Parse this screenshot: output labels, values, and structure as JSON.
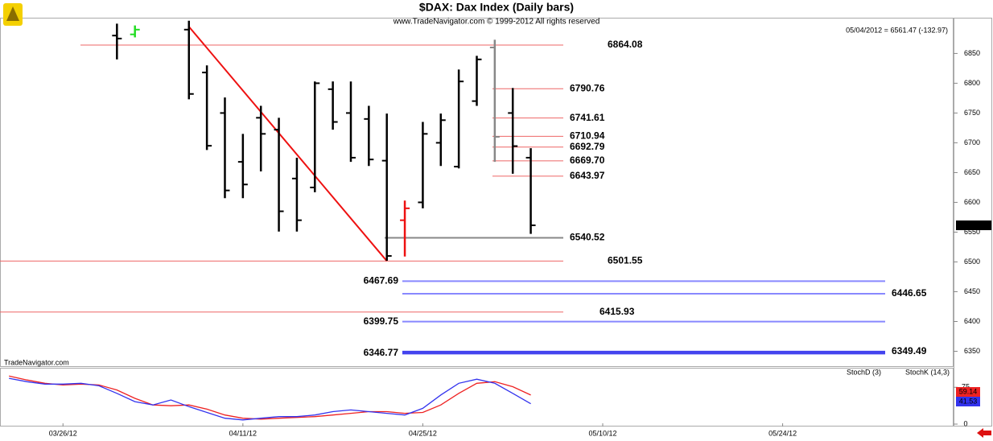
{
  "chart_data": [
    {
      "type": "ohlc",
      "title": "$DAX:  Dax Index  (Daily bars)",
      "subtitle": "www.TradeNavigator.com © 1999-2012 All rights reserved",
      "quote": "05/04/2012 = 6561.47 (-132.97)",
      "watermark": "TradeNavigator.com",
      "categories": [
        null,
        null,
        null,
        "03/26/12",
        null,
        null,
        null,
        null,
        null,
        null,
        null,
        null,
        null,
        "04/11/12",
        null,
        null,
        null,
        null,
        null,
        null,
        null,
        null,
        null,
        "04/25/12",
        null,
        null,
        null,
        null,
        null,
        null,
        null,
        null,
        null,
        "05/10/12",
        null,
        null,
        null,
        null,
        null,
        null,
        null,
        null,
        null,
        "05/24/12",
        null,
        null,
        null,
        null,
        null,
        null,
        null,
        null,
        null
      ],
      "open": [
        null,
        null,
        null,
        null,
        null,
        null,
        6880,
        6882,
        null,
        null,
        6890,
        6818,
        6750,
        6668,
        6742,
        6722,
        6640,
        6625,
        6790,
        6750,
        6740,
        6670,
        6570,
        6600,
        6700,
        6660,
        6770,
        6860,
        6750,
        6675,
        null,
        null,
        null,
        null,
        null,
        null,
        null,
        null,
        null,
        null,
        null,
        null,
        null,
        null,
        null,
        null,
        null,
        null,
        null,
        null,
        null,
        null,
        null
      ],
      "high": [
        null,
        null,
        null,
        null,
        null,
        null,
        6900,
        6897,
        null,
        null,
        6905,
        6830,
        6776,
        6715,
        6762,
        6742,
        6675,
        6803,
        6803,
        6803,
        6762,
        6749,
        6603,
        6735,
        6749,
        6823,
        6846,
        6873,
        6792,
        6691,
        null,
        null,
        null,
        null,
        null,
        null,
        null,
        null,
        null,
        null,
        null,
        null,
        null,
        null,
        null,
        null,
        null,
        null,
        null,
        null,
        null,
        null,
        null
      ],
      "low": [
        null,
        null,
        null,
        null,
        null,
        null,
        6840,
        6877,
        null,
        null,
        6773,
        6688,
        6607,
        6607,
        6652,
        6551,
        6551,
        6617,
        6722,
        6668,
        6661,
        6502,
        6509,
        6590,
        6661,
        6657,
        6762,
        6668,
        6648,
        6547,
        null,
        null,
        null,
        null,
        null,
        null,
        null,
        null,
        null,
        null,
        null,
        null,
        null,
        null,
        null,
        null,
        null,
        null,
        null,
        null,
        null,
        null,
        null
      ],
      "close": [
        null,
        null,
        null,
        null,
        null,
        null,
        6875,
        6890,
        null,
        null,
        6782,
        6695,
        6620,
        6630,
        6715,
        6585,
        6570,
        6800,
        6735,
        6675,
        6672,
        6510,
        6590,
        6715,
        6738,
        6803,
        6840,
        6710,
        6694.44,
        6561.47,
        null,
        null,
        null,
        null,
        null,
        null,
        null,
        null,
        null,
        null,
        null,
        null,
        null,
        null,
        null,
        null,
        null,
        null,
        null,
        null,
        null,
        null,
        null
      ],
      "bar_colors": [
        null,
        null,
        null,
        null,
        null,
        null,
        "#000000",
        "#22dd22",
        null,
        null,
        "#000000",
        "#000000",
        "#000000",
        "#000000",
        "#000000",
        "#000000",
        "#000000",
        "#000000",
        "#000000",
        "#000000",
        "#000000",
        "#000000",
        "#ee1111",
        "#000000",
        "#000000",
        "#000000",
        "#000000",
        "#888888",
        "#000000",
        "#000000",
        null,
        null,
        null,
        null,
        null,
        null,
        null,
        null,
        null,
        null,
        null,
        null,
        null,
        null,
        null,
        null,
        null,
        null,
        null,
        null,
        null,
        null,
        null
      ],
      "ylim": [
        6325,
        6910
      ],
      "yticks": [
        6350,
        6400,
        6450,
        6500,
        6550,
        6600,
        6650,
        6700,
        6750,
        6800,
        6850
      ],
      "trendline": {
        "color": "#ee1111",
        "values": [
          6895,
          6501.55
        ]
      },
      "levels": [
        {
          "value": 6864.08,
          "label": "6864.08",
          "color": "#ee6666",
          "text_color": "#ee1111"
        },
        {
          "value": 6790.76,
          "label": "6790.76",
          "color": "#ee6666",
          "text_color": "#ee1111"
        },
        {
          "value": 6741.61,
          "label": "6741.61",
          "color": "#ee6666",
          "text_color": "#ee1111"
        },
        {
          "value": 6710.94,
          "label": "6710.94",
          "color": "#ee6666",
          "text_color": "#ee1111"
        },
        {
          "value": 6692.79,
          "label": "6692.79",
          "color": "#ee6666",
          "text_color": "#ee1111"
        },
        {
          "value": 6669.7,
          "label": "6669.70",
          "color": "#ee6666",
          "text_color": "#ee1111"
        },
        {
          "value": 6643.97,
          "label": "6643.97",
          "color": "#ee6666",
          "text_color": "#ee1111"
        },
        {
          "value": 6540.52,
          "label": "6540.52",
          "color": "#888888",
          "text_color": "#000000"
        },
        {
          "value": 6501.55,
          "label": "6501.55",
          "color": "#ee6666",
          "text_color": "#ee1111"
        },
        {
          "value": 6467.69,
          "label": "6467.69",
          "color": "#8888ff",
          "text_color": "#2222ee"
        },
        {
          "value": 6446.65,
          "label": "6446.65",
          "color": "#8888ff",
          "text_color": "#2222ee"
        },
        {
          "value": 6415.93,
          "label": "6415.93",
          "color": "#ee6666",
          "text_color": "#ee1111"
        },
        {
          "value": 6399.75,
          "label": "6399.75",
          "color": "#8888ff",
          "text_color": "#2222ee"
        },
        {
          "value": 6346.77,
          "label": "6346.77",
          "color": "#4444ee",
          "text_color": "#2222ee"
        },
        {
          "value": 6349.49,
          "label": "6349.49",
          "color": "#4444ee",
          "text_color": "#2222ee"
        }
      ]
    },
    {
      "type": "line",
      "series": [
        {
          "name": "StochD (3)",
          "color": "#ee2222",
          "values": [
            98,
            89.8,
            83.1,
            79.7,
            81.4,
            79.7,
            69.5,
            52.5,
            39,
            37.3,
            39,
            30.5,
            18.6,
            11.9,
            10.2,
            11.9,
            13.6,
            15.3,
            18.6,
            22,
            25.4,
            25.4,
            22,
            23.7,
            39,
            62.7,
            83.1,
            86.4,
            76.3,
            59.14,
            null,
            null,
            null,
            null,
            null,
            null,
            null,
            null,
            null,
            null,
            null,
            null,
            null,
            null,
            null,
            null,
            null,
            null,
            null,
            null,
            null,
            null,
            null
          ]
        },
        {
          "name": "StochK (14,3)",
          "color": "#3333ee",
          "values": [
            93.2,
            86.4,
            81.4,
            81.4,
            83.1,
            78,
            62.7,
            45.8,
            39,
            49.2,
            35.6,
            23.7,
            11.9,
            8.5,
            11.9,
            15.3,
            15.3,
            18.6,
            25.4,
            28.8,
            25.4,
            22,
            18.6,
            32.2,
            59.3,
            83.1,
            91.5,
            83.1,
            62.7,
            41.53,
            null,
            null,
            null,
            null,
            null,
            null,
            null,
            null,
            null,
            null,
            null,
            null,
            null,
            null,
            null,
            null,
            null,
            null,
            null,
            null,
            null,
            null,
            null
          ]
        }
      ],
      "ylim": [
        0,
        100
      ],
      "yticks": [
        0,
        75
      ]
    }
  ]
}
